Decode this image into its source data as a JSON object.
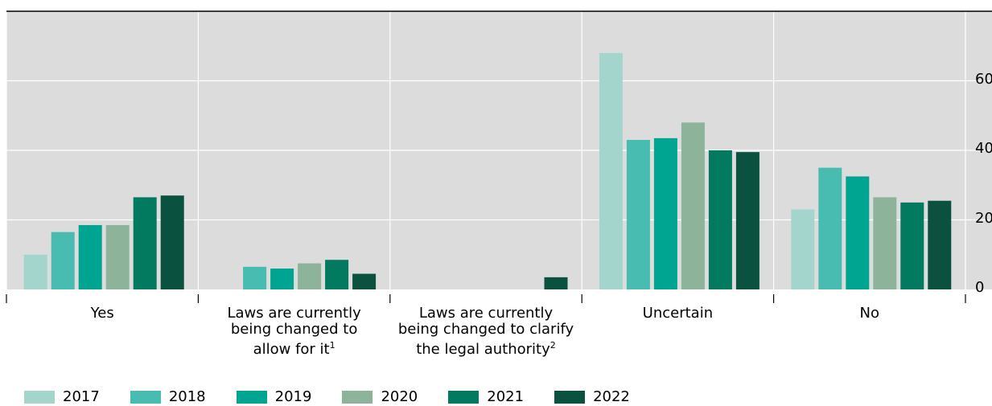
{
  "chart_data": {
    "type": "bar",
    "title": "",
    "xlabel": "",
    "ylabel": "",
    "categories": [
      "Yes",
      "Laws are currently being changed to allow for it",
      "Laws are currently being changed to clarify the legal authority",
      "Uncertain",
      "No"
    ],
    "category_lines": [
      [
        "Yes"
      ],
      [
        "Laws are currently",
        "being changed to",
        "allow for it"
      ],
      [
        "Laws are currently",
        "being changed to clarify",
        "the legal authority"
      ],
      [
        "Uncertain"
      ],
      [
        "No"
      ]
    ],
    "category_notes": [
      "",
      "1",
      "2",
      "",
      ""
    ],
    "series": [
      {
        "name": "2017",
        "color": "#a3d5cd",
        "values": [
          10,
          0,
          0,
          68,
          23
        ]
      },
      {
        "name": "2018",
        "color": "#48bcb0",
        "values": [
          16.5,
          6.5,
          0,
          43,
          35
        ]
      },
      {
        "name": "2019",
        "color": "#00a591",
        "values": [
          18.5,
          6,
          0,
          43.5,
          32.5
        ]
      },
      {
        "name": "2020",
        "color": "#8db39a",
        "values": [
          18.5,
          7.5,
          0,
          48,
          26.5
        ]
      },
      {
        "name": "2021",
        "color": "#017a60",
        "values": [
          26.5,
          8.5,
          0,
          40,
          25
        ]
      },
      {
        "name": "2022",
        "color": "#0b5140",
        "values": [
          27,
          4.5,
          3.5,
          39.5,
          25.5
        ]
      }
    ],
    "ylim": [
      0,
      80
    ],
    "yticks": [
      0,
      20,
      40,
      60
    ],
    "ytick_labels": [
      "0",
      "20",
      "40",
      "60"
    ],
    "grid": true,
    "legend_position": "bottom-left",
    "axis_side": "right"
  }
}
